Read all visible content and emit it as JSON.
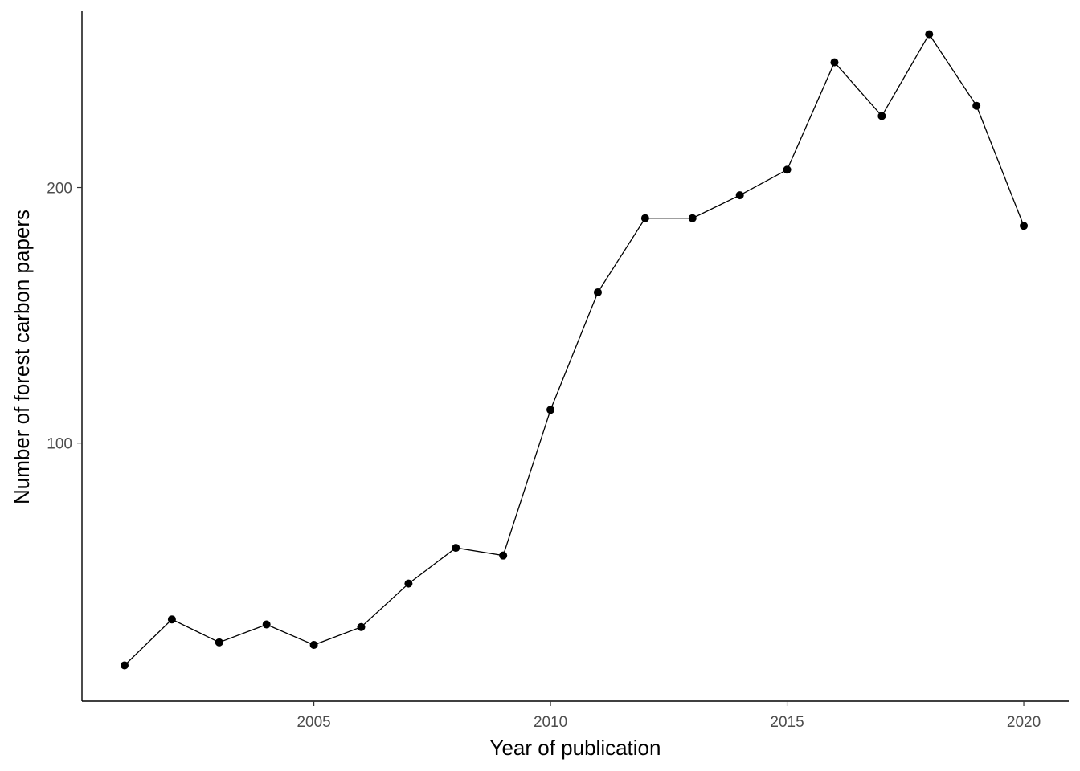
{
  "chart_data": {
    "type": "line",
    "title": "",
    "xlabel": "Year of publication",
    "ylabel": "Number of forest carbon papers",
    "x": [
      2001,
      2002,
      2003,
      2004,
      2005,
      2006,
      2007,
      2008,
      2009,
      2010,
      2011,
      2012,
      2013,
      2014,
      2015,
      2016,
      2017,
      2018,
      2019,
      2020
    ],
    "series": [
      {
        "values": [
          13,
          31,
          22,
          29,
          21,
          28,
          45,
          59,
          56,
          113,
          159,
          188,
          188,
          197,
          207,
          249,
          228,
          260,
          232,
          185
        ],
        "color": "#000000"
      }
    ],
    "xlim": [
      2000.1,
      2020.95
    ],
    "ylim": [
      -1,
      269
    ],
    "x_ticks": [
      "2005",
      "2010",
      "2015",
      "2020"
    ],
    "y_ticks": [
      "100",
      "200"
    ],
    "grid": false,
    "legend": "none",
    "markers": true
  }
}
